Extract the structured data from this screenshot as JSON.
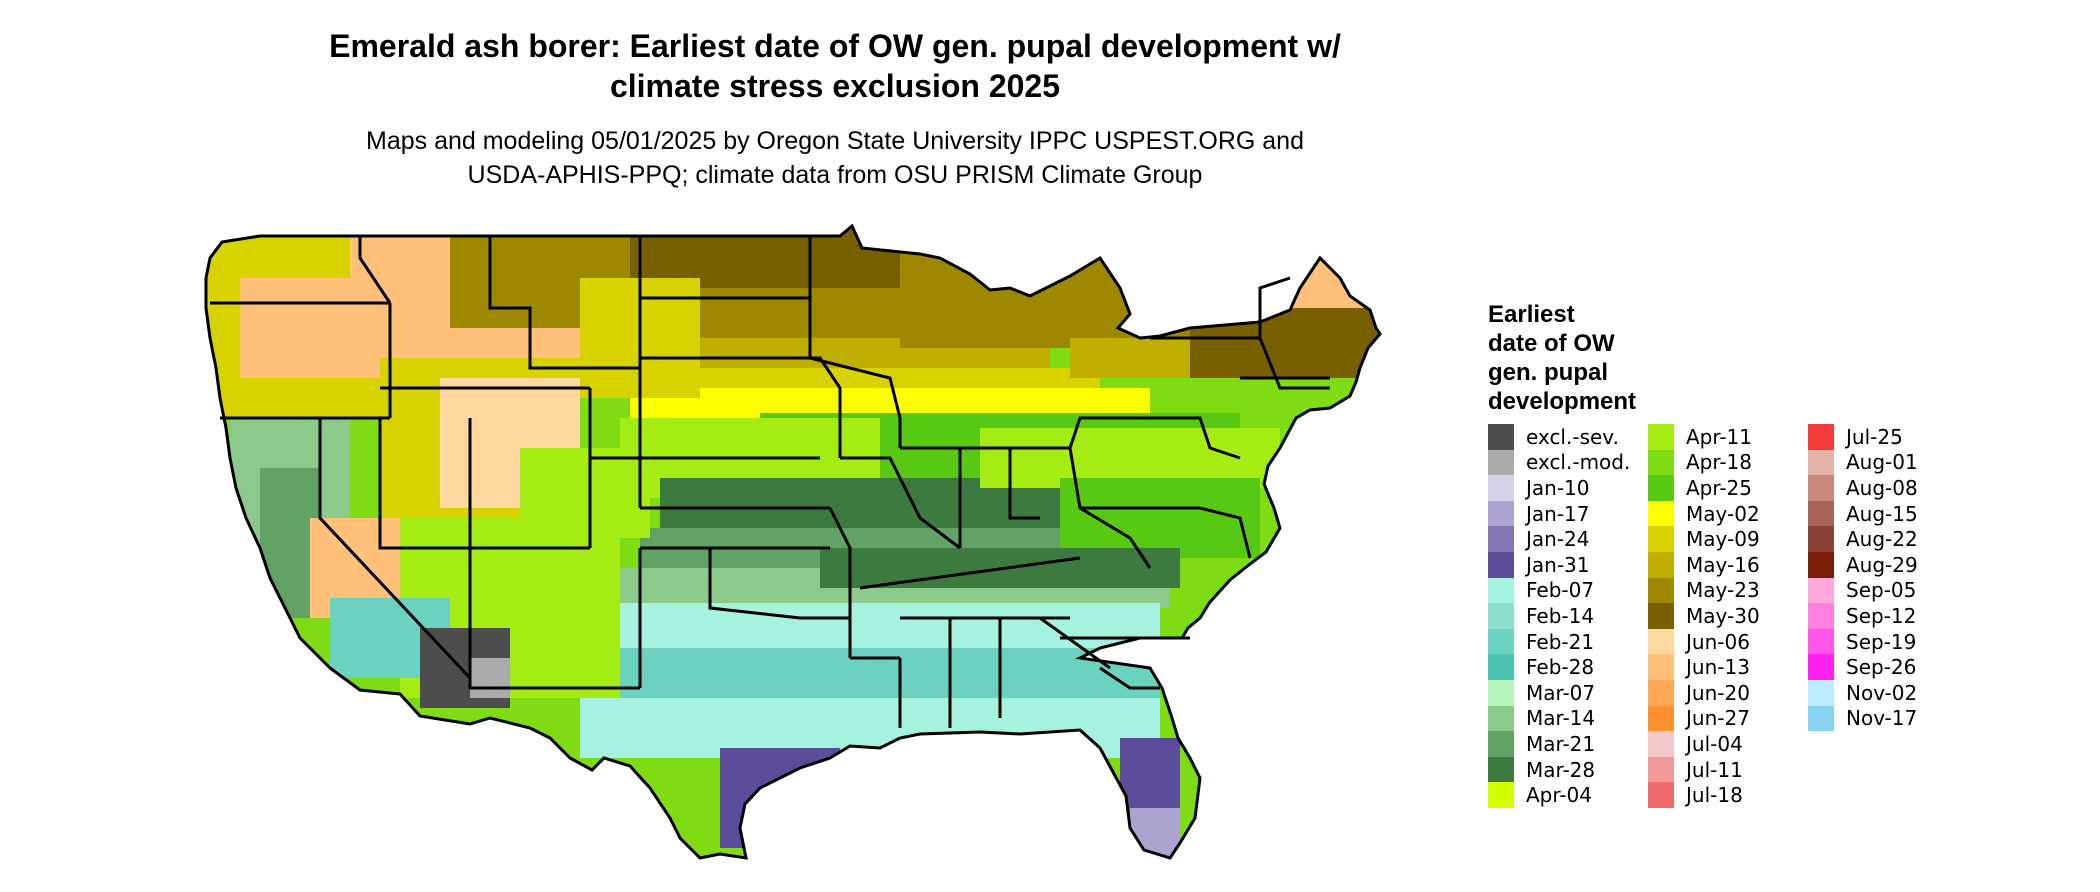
{
  "title": {
    "line1": "Emerald ash borer: Earliest date of OW gen. pupal development w/",
    "line2": "climate stress exclusion 2025"
  },
  "subtitle": {
    "line1": "Maps and modeling 05/01/2025 by Oregon State University IPPC USPEST.ORG and",
    "line2": "USDA-APHIS-PPQ; climate data from OSU PRISM Climate Group"
  },
  "legend": {
    "title_lines": [
      "Earliest",
      "date of OW",
      "gen. pupal",
      "development"
    ],
    "columns": [
      [
        {
          "label": "excl.-sev.",
          "color": "#4d4d4d"
        },
        {
          "label": "excl.-mod.",
          "color": "#ababab"
        },
        {
          "label": "Jan-10",
          "color": "#d7d2ea"
        },
        {
          "label": "Jan-17",
          "color": "#ada3d0"
        },
        {
          "label": "Jan-24",
          "color": "#8677b6"
        },
        {
          "label": "Jan-31",
          "color": "#5d4c9a"
        },
        {
          "label": "Feb-07",
          "color": "#a6f2e0"
        },
        {
          "label": "Feb-14",
          "color": "#8ae0cb"
        },
        {
          "label": "Feb-21",
          "color": "#6bd2bf"
        },
        {
          "label": "Feb-28",
          "color": "#4cc2b1"
        },
        {
          "label": "Mar-07",
          "color": "#b8f5bd"
        },
        {
          "label": "Mar-14",
          "color": "#8cca8c"
        },
        {
          "label": "Mar-21",
          "color": "#61a365"
        },
        {
          "label": "Mar-28",
          "color": "#3c7a3f"
        },
        {
          "label": "Apr-04",
          "color": "#d2ff00"
        }
      ],
      [
        {
          "label": "Apr-11",
          "color": "#a4ec14"
        },
        {
          "label": "Apr-18",
          "color": "#7fdc14"
        },
        {
          "label": "Apr-25",
          "color": "#57c814"
        },
        {
          "label": "May-02",
          "color": "#ffff00"
        },
        {
          "label": "May-09",
          "color": "#d8d200"
        },
        {
          "label": "May-16",
          "color": "#bfae00"
        },
        {
          "label": "May-23",
          "color": "#9e8800"
        },
        {
          "label": "May-30",
          "color": "#786000"
        },
        {
          "label": "Jun-06",
          "color": "#ffd8a0"
        },
        {
          "label": "Jun-13",
          "color": "#ffc07a"
        },
        {
          "label": "Jun-20",
          "color": "#ffa85a"
        },
        {
          "label": "Jun-27",
          "color": "#ff9230"
        },
        {
          "label": "Jul-04",
          "color": "#f4c8c8"
        },
        {
          "label": "Jul-11",
          "color": "#f29a9a"
        },
        {
          "label": "Jul-18",
          "color": "#f06c6c"
        }
      ],
      [
        {
          "label": "Jul-25",
          "color": "#f43c3c"
        },
        {
          "label": "Aug-01",
          "color": "#e4b4aa"
        },
        {
          "label": "Aug-08",
          "color": "#c8897a"
        },
        {
          "label": "Aug-15",
          "color": "#a86454"
        },
        {
          "label": "Aug-22",
          "color": "#8a4234"
        },
        {
          "label": "Aug-29",
          "color": "#7a1e0a"
        },
        {
          "label": "Sep-05",
          "color": "#ffaadc"
        },
        {
          "label": "Sep-12",
          "color": "#ff80e0"
        },
        {
          "label": "Sep-19",
          "color": "#ff55e8"
        },
        {
          "label": "Sep-26",
          "color": "#ff22f0"
        },
        {
          "label": "Nov-02",
          "color": "#bdeaff"
        },
        {
          "label": "Nov-17",
          "color": "#88d4f0"
        }
      ]
    ]
  }
}
